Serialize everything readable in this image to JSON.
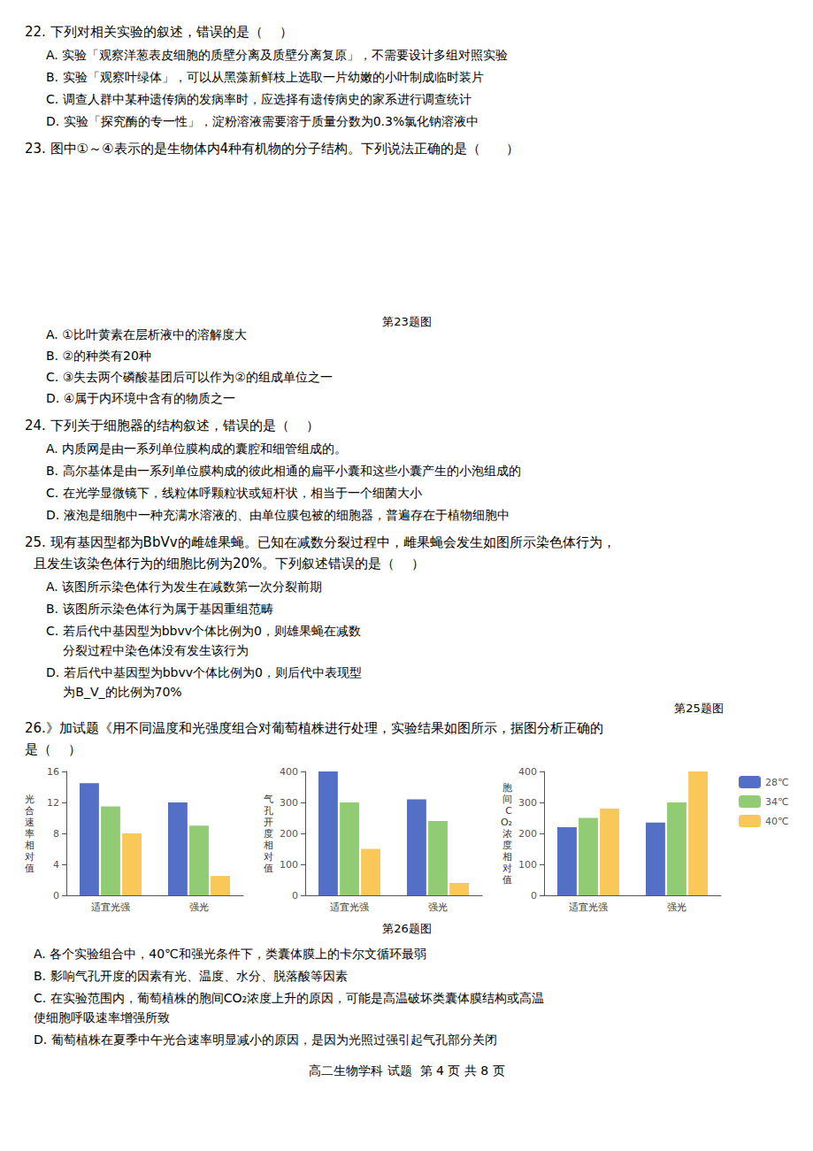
{
  "chart_data": [
    {
      "type": "bar",
      "annotations": [
        "22. 下列对相关实验的叙述，错误的是（    ）",
        "A. 实验「观察洋葱表皮细胞的质壁分离及质壁分离复原」，不需要设计多组对照实验",
        "B. 实验「观察叶绿体」，可以从黑藻新鲜枝上选取一片幼嫩的小叶制成临时装片",
        "C. 调查人群中某种遗传病的发病率时，应选择有遗传病史的家系进行调查统计",
        "D. 实验「探究酶的专一性」，淀粉溶液需要溶于质量分数为0.3%氯化钠溶液中",
        "23. 图中①～④表示的是生物体内4种有机物的分子结构。下列说法正确的是（      ）",
        "第23题图",
        "A. ①比叶黄素在层析液中的溶解度大",
        "B. ②的种类有20种",
        "C. ③失去两个磷酸基团后可以作为②的组成单位之一",
        "D. ④属于内环境中含有的物质之一",
        "24. 下列关于细胞器的结构叙述，错误的是（    ）",
        "A. 内质网是由一系列单位膜构成的囊腔和细管组成的。",
        "B. 高尔基体是由一系列单位膜构成的彼此相通的扁平小囊和这些小囊产生的小泡组成的",
        "C. 在光学显微镜下，线粒体呼颗粒状或短杆状，相当于一个细菌大小",
        "D. 液泡是细胞中一种充满水溶液的、由单位膜包被的细胞器，普遍存在于植物细胞中",
        "25. 现有基因型都为BbVv的雌雄果蝇。已知在减数分裂过程中，雌果蝇会发生如图所示染色体行为，",
        "且发生该染色体行为的细胞比例为20%。下列叙述错误的是（    ）",
        "A. 该图所示染色体行为发生在减数第一次分裂前期",
        "B. 该图所示染色体行为属于基因重组范畴",
        "C. 若后代中基因型为bbvv个体比例为0，则雄果蝇在减数",
        "   分裂过程中染色体没有发生该行为",
        "D. 若后代中基因型为bbvv个体比例为0，则后代中表现型",
        "   为B_V_的比例为70%",
        "第25题图",
        "26.》加试题《用不同温度和光强度组合对葡萄植株进行处理，实验结果如图所示，据图分析正确的",
        "是（    ）",
        "第26题图",
        "A. 各个实验组合中，40℃和强光条件下，类囊体膜上的卡尔文循环最弱",
        "B. 影响气孔开度的因素有光、温度、水分、脱落酸等因素",
        "C. 在实验范围内，葡萄植株的胞间CO₂浓度上升的原因，可能是高温破坏类囊体膜结构或高温",
        "使细胞呼吸速率增强所致",
        "D. 葡萄植株在夏季中午光合速率明显减小的原因，是因为光照过强引起气孔部分关闭",
        "高二生物学科 试题  第 4 页 共 8 页"
      ],
      "ylabel": "光\n合\n速\n率\n相\n对\n值",
      "categories": [
        "适宜光强",
        "强光"
      ],
      "series": [
        {
          "name": "28℃",
          "values": [
            14.5,
            12.0
          ]
        },
        {
          "name": "34℃",
          "values": [
            11.5,
            9.0
          ]
        },
        {
          "name": "40℃",
          "values": [
            8.0,
            2.5
          ]
        }
      ],
      "ylim": [
        0,
        16
      ],
      "yticks": [
        0,
        4,
        8,
        12,
        16
      ],
      "grid": false
    },
    {
      "type": "bar",
      "ylabel": "气\n孔\n开\n度\n相\n对\n值",
      "categories": [
        "适宜光强",
        "强光"
      ],
      "series": [
        {
          "name": "28℃",
          "values": [
            400,
            310
          ]
        },
        {
          "name": "34℃",
          "values": [
            300,
            240
          ]
        },
        {
          "name": "40℃",
          "values": [
            150,
            40
          ]
        }
      ],
      "ylim": [
        0,
        400
      ],
      "yticks": [
        0,
        100,
        200,
        300,
        400
      ],
      "grid": false
    },
    {
      "type": "bar",
      "ylabel": "胞\n间\nC\nO₂\n浓\n度\n相\n对\n值",
      "categories": [
        "适宜光强",
        "强光"
      ],
      "series": [
        {
          "name": "28℃",
          "values": [
            220,
            235
          ]
        },
        {
          "name": "34℃",
          "values": [
            250,
            300
          ]
        },
        {
          "name": "40℃",
          "values": [
            280,
            400
          ]
        }
      ],
      "ylim": [
        0,
        400
      ],
      "yticks": [
        0,
        100,
        200,
        300,
        400
      ],
      "grid": false,
      "legend": "right"
    }
  ]
}
